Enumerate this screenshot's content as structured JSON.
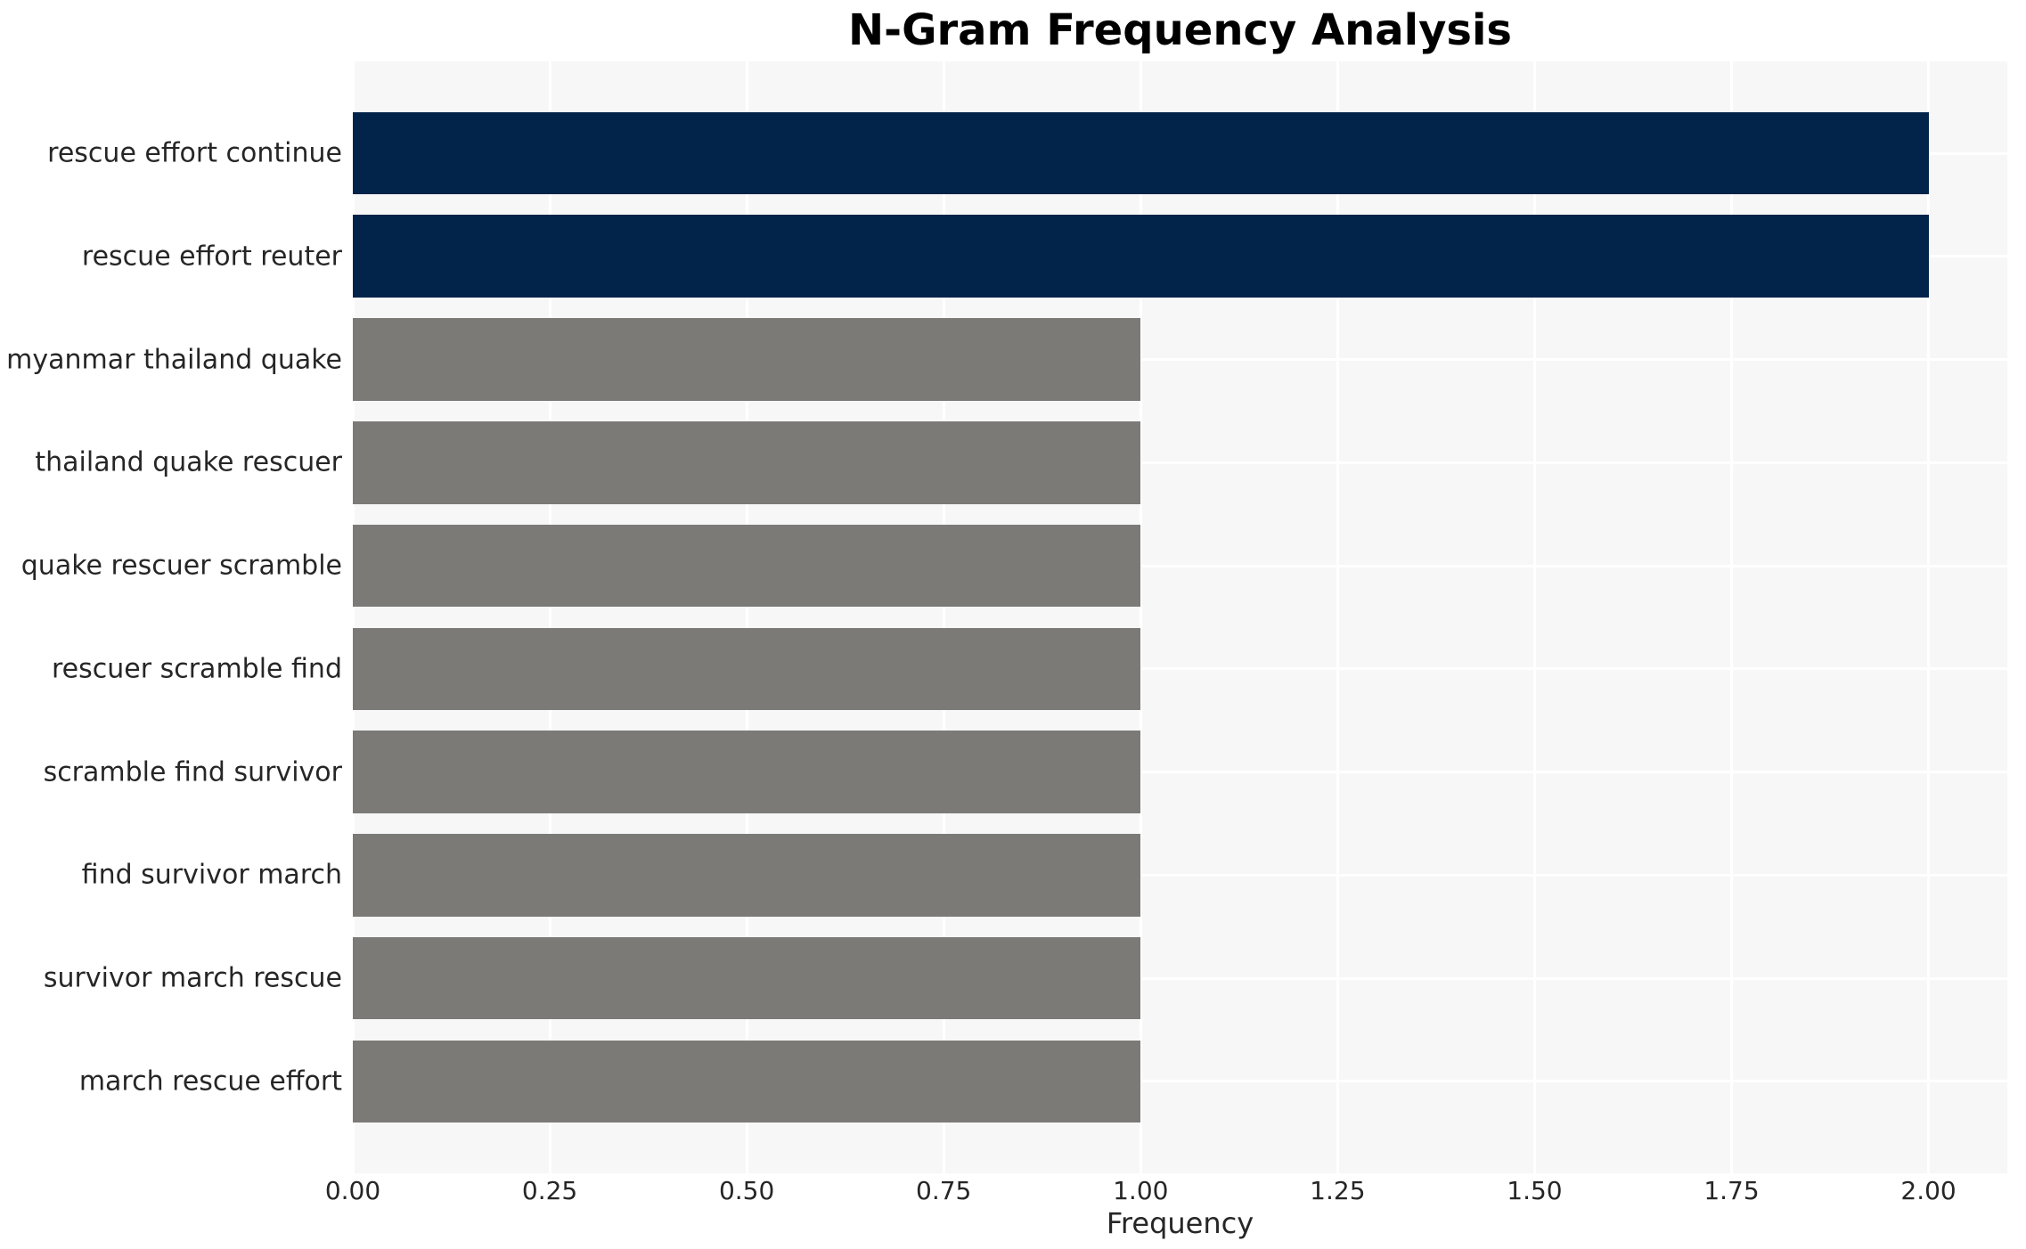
{
  "chart_data": {
    "type": "bar",
    "orientation": "horizontal",
    "title": "N-Gram Frequency Analysis",
    "xlabel": "Frequency",
    "ylabel": "",
    "categories": [
      "rescue effort continue",
      "rescue effort reuter",
      "myanmar thailand quake",
      "thailand quake rescuer",
      "quake rescuer scramble",
      "rescuer scramble find",
      "scramble find survivor",
      "find survivor march",
      "survivor march rescue",
      "march rescue effort"
    ],
    "values": [
      2,
      2,
      1,
      1,
      1,
      1,
      1,
      1,
      1,
      1
    ],
    "bar_colors": [
      "#02234a",
      "#02234a",
      "#7b7a77",
      "#7b7a77",
      "#7b7a77",
      "#7b7a77",
      "#7b7a77",
      "#7b7a77",
      "#7b7a77",
      "#7b7a77"
    ],
    "highlight_color": "#02234a",
    "default_color": "#7b7a77",
    "xlim": [
      0,
      2.1
    ],
    "xtick_labels": [
      "0.00",
      "0.25",
      "0.50",
      "0.75",
      "1.00",
      "1.25",
      "1.50",
      "1.75",
      "2.00"
    ],
    "xtick_values": [
      0,
      0.25,
      0.5,
      0.75,
      1.0,
      1.25,
      1.5,
      1.75,
      2.0
    ],
    "grid": true,
    "grid_color": "#ffffff",
    "plot_background": "#f7f7f7",
    "page_background": "#ffffff",
    "text_color": "#262626",
    "title_color": "#000000",
    "legend_position": "none"
  }
}
